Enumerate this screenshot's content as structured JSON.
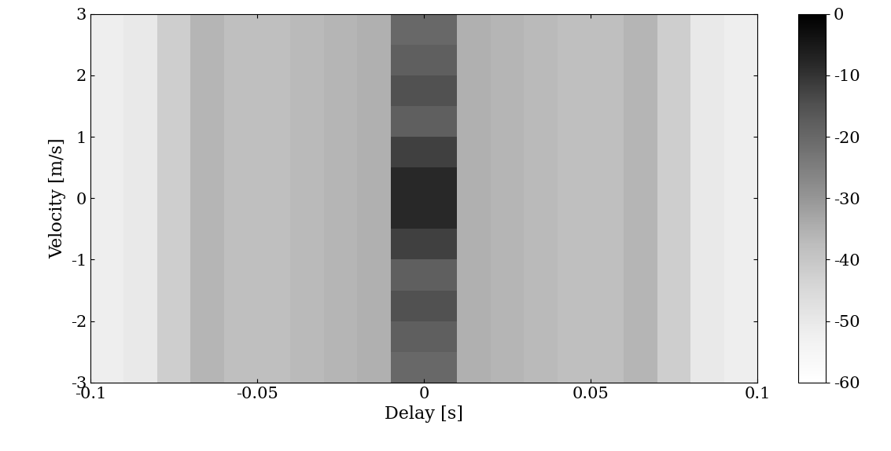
{
  "chart_data": {
    "type": "heatmap",
    "x_label": "Delay [s]",
    "y_label": "Velocity [m/s]",
    "xlim": [
      -0.1,
      0.1
    ],
    "xticks": [
      -0.1,
      -0.05,
      0,
      0.05,
      0.1
    ],
    "ylim": [
      -3,
      3
    ],
    "yticks": [
      -3,
      -2,
      -1,
      0,
      1,
      2,
      3
    ],
    "x_edges": [
      -0.1,
      -0.09,
      -0.08,
      -0.07,
      -0.06,
      -0.05,
      -0.04,
      -0.03,
      -0.02,
      -0.01,
      0,
      0.01,
      0.02,
      0.03,
      0.04,
      0.05,
      0.06,
      0.07,
      0.08,
      0.09,
      0.1
    ],
    "y_edges": [
      -3,
      -2.5,
      -2,
      -1.5,
      -1,
      -0.5,
      0,
      0.5,
      1,
      1.5,
      2,
      2.5,
      3
    ],
    "cells": [
      [
        -52,
        -50,
        -42,
        -36,
        -38,
        -38,
        -37,
        -36,
        -35,
        -20,
        -20,
        -35,
        -36,
        -37,
        -38,
        -38,
        -36,
        -42,
        -50,
        -52
      ],
      [
        -52,
        -50,
        -42,
        -36,
        -38,
        -38,
        -37,
        -36,
        -35,
        -18,
        -18,
        -35,
        -36,
        -37,
        -38,
        -38,
        -36,
        -42,
        -50,
        -52
      ],
      [
        -52,
        -50,
        -42,
        -36,
        -38,
        -38,
        -37,
        -36,
        -35,
        -15,
        -15,
        -35,
        -36,
        -37,
        -38,
        -38,
        -36,
        -42,
        -50,
        -52
      ],
      [
        -52,
        -50,
        -42,
        -36,
        -38,
        -38,
        -37,
        -36,
        -35,
        -18,
        -18,
        -35,
        -36,
        -37,
        -38,
        -38,
        -36,
        -42,
        -50,
        -52
      ],
      [
        -52,
        -50,
        -42,
        -36,
        -38,
        -38,
        -37,
        -36,
        -35,
        -12,
        -12,
        -35,
        -36,
        -37,
        -38,
        -38,
        -36,
        -42,
        -50,
        -52
      ],
      [
        -52,
        -50,
        -42,
        -36,
        -38,
        -38,
        -37,
        -36,
        -35,
        -8,
        -8,
        -35,
        -36,
        -37,
        -38,
        -38,
        -36,
        -42,
        -50,
        -52
      ],
      [
        -52,
        -50,
        -42,
        -36,
        -38,
        -38,
        -37,
        -36,
        -35,
        -8,
        -8,
        -35,
        -36,
        -37,
        -38,
        -38,
        -36,
        -42,
        -50,
        -52
      ],
      [
        -52,
        -50,
        -42,
        -36,
        -38,
        -38,
        -37,
        -36,
        -35,
        -12,
        -12,
        -35,
        -36,
        -37,
        -38,
        -38,
        -36,
        -42,
        -50,
        -52
      ],
      [
        -52,
        -50,
        -42,
        -36,
        -38,
        -38,
        -37,
        -36,
        -35,
        -18,
        -18,
        -35,
        -36,
        -37,
        -38,
        -38,
        -36,
        -42,
        -50,
        -52
      ],
      [
        -52,
        -50,
        -42,
        -36,
        -38,
        -38,
        -37,
        -36,
        -35,
        -15,
        -15,
        -35,
        -36,
        -37,
        -38,
        -38,
        -36,
        -42,
        -50,
        -52
      ],
      [
        -52,
        -50,
        -42,
        -36,
        -38,
        -38,
        -37,
        -36,
        -35,
        -18,
        -18,
        -35,
        -36,
        -37,
        -38,
        -38,
        -36,
        -42,
        -50,
        -52
      ],
      [
        -52,
        -50,
        -42,
        -36,
        -38,
        -38,
        -37,
        -36,
        -35,
        -20,
        -20,
        -35,
        -36,
        -37,
        -38,
        -38,
        -36,
        -42,
        -50,
        -52
      ]
    ],
    "colorbar_lim": [
      -60,
      0
    ],
    "colorbar_ticks": [
      0,
      -10,
      -20,
      -30,
      -40,
      -50,
      -60
    ]
  }
}
